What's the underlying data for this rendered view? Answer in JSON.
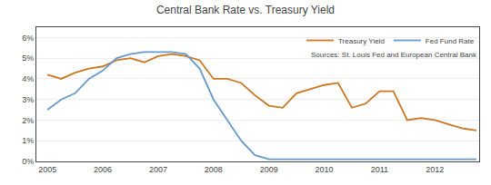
{
  "chart_data": {
    "type": "line",
    "title": "Central Bank Rate vs. Treasury Yield",
    "annotations": [
      "Sources: St. Louis Fed and European Central Bank"
    ],
    "x": [
      2005.0,
      2005.25,
      2005.5,
      2005.75,
      2006.0,
      2006.25,
      2006.5,
      2006.75,
      2007.0,
      2007.25,
      2007.5,
      2007.75,
      2008.0,
      2008.25,
      2008.5,
      2008.75,
      2009.0,
      2009.25,
      2009.5,
      2009.75,
      2010.0,
      2010.25,
      2010.5,
      2010.75,
      2011.0,
      2011.25,
      2011.5,
      2011.75,
      2012.0,
      2012.25,
      2012.5,
      2012.75
    ],
    "series": [
      {
        "name": "Treasury Yield",
        "color": "#cc7722",
        "values": [
          0.042,
          0.04,
          0.043,
          0.045,
          0.046,
          0.049,
          0.05,
          0.048,
          0.051,
          0.052,
          0.051,
          0.049,
          0.04,
          0.04,
          0.038,
          0.032,
          0.027,
          0.026,
          0.033,
          0.035,
          0.037,
          0.038,
          0.026,
          0.028,
          0.034,
          0.034,
          0.02,
          0.021,
          0.02,
          0.018,
          0.016,
          0.015
        ]
      },
      {
        "name": "Fed Fund Rate",
        "color": "#6699cc",
        "values": [
          0.025,
          0.03,
          0.033,
          0.04,
          0.044,
          0.05,
          0.052,
          0.053,
          0.053,
          0.053,
          0.052,
          0.045,
          0.03,
          0.02,
          0.01,
          0.003,
          0.001,
          0.001,
          0.001,
          0.001,
          0.001,
          0.001,
          0.001,
          0.001,
          0.001,
          0.001,
          0.001,
          0.001,
          0.001,
          0.001,
          0.001,
          0.001
        ]
      }
    ],
    "xlim": [
      2004.8,
      2012.8
    ],
    "xticks": [
      2005,
      2006,
      2007,
      2008,
      2009,
      2010,
      2011,
      2012
    ],
    "ylim": [
      0,
      0.065
    ],
    "yticks": [
      {
        "value": 0.0,
        "label": "0%"
      },
      {
        "value": 0.01,
        "label": "1%"
      },
      {
        "value": 0.02,
        "label": "2%"
      },
      {
        "value": 0.03,
        "label": "3%"
      },
      {
        "value": 0.04,
        "label": "4%"
      },
      {
        "value": 0.05,
        "label": "5%"
      },
      {
        "value": 0.06,
        "label": "6%"
      }
    ],
    "grid": true,
    "legend": "upper right"
  }
}
